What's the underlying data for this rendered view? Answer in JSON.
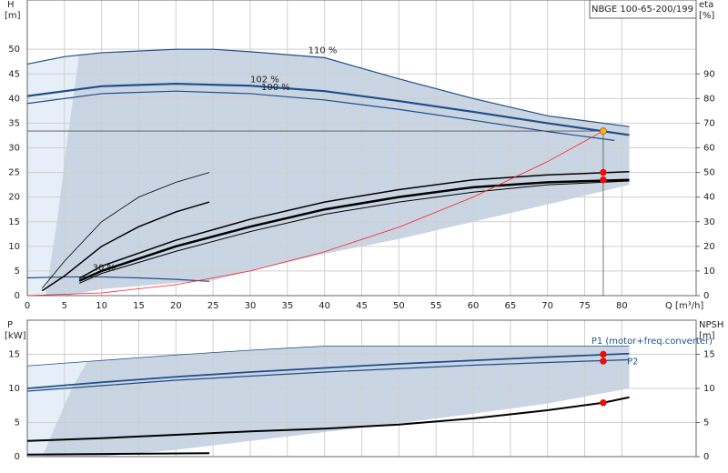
{
  "chart_data": [
    {
      "type": "line",
      "title": "NBGE 100-65-200/199",
      "ylabel": "H",
      "yunit": "[m]",
      "y2label": "eta",
      "y2unit": "[%]",
      "xlabel": "Q [m³/h]",
      "xlim": [
        0,
        90
      ],
      "ylim": [
        0,
        60
      ],
      "y2lim": [
        0,
        120
      ],
      "xticks": [
        0,
        5,
        10,
        15,
        20,
        25,
        30,
        35,
        40,
        45,
        50,
        55,
        60,
        65,
        70,
        75,
        80
      ],
      "yticks": [
        0,
        5,
        10,
        15,
        20,
        25,
        30,
        35,
        40,
        45,
        50
      ],
      "y2ticks": [
        0,
        10,
        20,
        30,
        40,
        50,
        60,
        70,
        80,
        90
      ],
      "grid": true,
      "areas": [
        {
          "color": "#e6eef7",
          "x": [
            0,
            5,
            10,
            20,
            25,
            30,
            40,
            50,
            60,
            70,
            81
          ],
          "upper": [
            47,
            48.5,
            49.3,
            50,
            50,
            49.5,
            48.3,
            44,
            40,
            36.5,
            34.3
          ],
          "lower": [
            0,
            0,
            1.3,
            2.6,
            3.1,
            5,
            8.5,
            11.5,
            15,
            18.5,
            22.5
          ]
        },
        {
          "color": "#c9d5e3",
          "x": [
            2.5,
            4,
            5.5,
            7,
            10,
            20,
            25,
            30,
            40,
            50,
            60,
            70,
            81
          ],
          "upper": [
            0.5,
            15,
            33,
            49,
            49.3,
            50,
            50,
            49.5,
            48.3,
            44,
            40,
            36.5,
            34.3
          ],
          "lower": [
            0,
            0,
            0,
            0.5,
            1.3,
            2.6,
            3.1,
            5,
            8.5,
            11.5,
            15,
            18.5,
            22.5
          ]
        }
      ],
      "series": [
        {
          "name": "110 %",
          "color": "#1f4f8a",
          "width": 1.2,
          "x": [
            0,
            5,
            10,
            20,
            25,
            30,
            40,
            50,
            60,
            70,
            81
          ],
          "values": [
            47,
            48.5,
            49.3,
            50,
            50,
            49.5,
            48.3,
            44,
            40,
            36.5,
            34.3
          ]
        },
        {
          "name": "102 %",
          "color": "#1f4f8a",
          "width": 2.2,
          "x": [
            0,
            10,
            20,
            30,
            40,
            50,
            60,
            70,
            81
          ],
          "values": [
            40.5,
            42.5,
            43,
            42.6,
            41.5,
            39.5,
            37.3,
            35,
            32.6
          ]
        },
        {
          "name": "100 %",
          "color": "#1f4f8a",
          "width": 1.2,
          "x": [
            0,
            10,
            20,
            30,
            40,
            50,
            60,
            70,
            79
          ],
          "values": [
            39,
            41,
            41.5,
            41,
            39.7,
            37.8,
            35.6,
            33.3,
            31.5
          ]
        },
        {
          "name": "30 %",
          "color": "#1f4f8a",
          "width": 1.2,
          "x": [
            0,
            5,
            10,
            15,
            20,
            24.5
          ],
          "values": [
            3.6,
            3.8,
            3.8,
            3.6,
            3.3,
            2.9
          ]
        },
        {
          "color": "#000000",
          "width": 1.5,
          "axis": "y2",
          "x": [
            7,
            10,
            20,
            30,
            40,
            50,
            60,
            70,
            81
          ],
          "values": [
            7,
            12,
            22.5,
            31,
            38,
            43,
            47,
            49,
            50.3
          ]
        },
        {
          "color": "#000000",
          "width": 2.5,
          "axis": "y2",
          "x": [
            7,
            10,
            20,
            30,
            40,
            50,
            60,
            70,
            81
          ],
          "values": [
            6,
            10,
            20,
            28,
            35,
            40,
            44,
            46,
            47
          ]
        },
        {
          "color": "#000000",
          "width": 1,
          "axis": "y2",
          "x": [
            7,
            10,
            20,
            30,
            40,
            50,
            60,
            70,
            81
          ],
          "values": [
            5,
            9,
            18,
            26,
            33,
            38,
            42,
            45,
            46.5
          ]
        },
        {
          "color": "#000000",
          "width": 0.8,
          "axis": "y2",
          "x": [
            2,
            5,
            10,
            15,
            20,
            24.5
          ],
          "values": [
            3,
            14,
            30,
            40,
            46,
            50
          ]
        },
        {
          "color": "#000000",
          "width": 1.5,
          "axis": "y2",
          "x": [
            2,
            5,
            10,
            15,
            20,
            24.5
          ],
          "values": [
            2,
            8,
            20,
            28,
            34,
            38
          ]
        },
        {
          "color": "#ff2020",
          "width": 0.8,
          "x": [
            0,
            10,
            20,
            30,
            40,
            50,
            60,
            70,
            77.5
          ],
          "values": [
            0,
            0.56,
            2.22,
            5,
            8.9,
            13.9,
            20,
            27.2,
            33.4
          ]
        }
      ],
      "points": [
        {
          "x": 77.5,
          "value": 33.4,
          "color": "#f5b800",
          "guides": true
        },
        {
          "x": 77.5,
          "value": 50,
          "axis": "y2",
          "color": "#ff0000"
        },
        {
          "x": 77.5,
          "value": 47,
          "axis": "y2",
          "color": "#ff0000"
        }
      ]
    },
    {
      "type": "line",
      "ylabel": "P",
      "yunit": "[kW]",
      "y2label": "NPSH",
      "y2unit": "[m]",
      "xlim": [
        0,
        90
      ],
      "ylim": [
        0,
        20
      ],
      "y2lim": [
        0,
        20
      ],
      "yticks": [
        0,
        5,
        10,
        15
      ],
      "y2ticks": [
        0,
        5,
        10,
        15
      ],
      "grid": true,
      "areas": [
        {
          "color": "#e6eef7",
          "x": [
            0,
            10,
            20,
            30,
            40,
            50,
            60,
            70,
            81
          ],
          "upper": [
            13.3,
            14.1,
            14.9,
            15.6,
            16.2,
            16.2,
            16.2,
            16.2,
            16.2
          ],
          "lower": [
            0,
            0,
            1,
            2.3,
            3.6,
            4.9,
            6.3,
            7.8,
            10
          ]
        },
        {
          "color": "#c9d5e3",
          "x": [
            2,
            4,
            6,
            8,
            10,
            20,
            30,
            40,
            50,
            60,
            70,
            81
          ],
          "upper": [
            0,
            5,
            10,
            13.8,
            14.1,
            14.9,
            15.6,
            16.2,
            16.2,
            16.2,
            16.2,
            16.2
          ],
          "lower": [
            0,
            0,
            0,
            0,
            0,
            1,
            2.3,
            3.6,
            4.9,
            6.3,
            7.8,
            10
          ]
        }
      ],
      "series": [
        {
          "name": "P1 (motor+freq.converter)",
          "color": "#1f4f8a",
          "width": 1.8,
          "x": [
            0,
            10,
            20,
            30,
            40,
            50,
            60,
            70,
            81
          ],
          "values": [
            10,
            10.9,
            11.7,
            12.4,
            13,
            13.6,
            14.1,
            14.6,
            15.1
          ]
        },
        {
          "name": "P2",
          "color": "#1f4f8a",
          "width": 1.2,
          "x": [
            0,
            10,
            20,
            30,
            40,
            50,
            60,
            70,
            81
          ],
          "values": [
            9.6,
            10.4,
            11.2,
            11.8,
            12.4,
            12.9,
            13.4,
            13.8,
            14.2
          ]
        },
        {
          "color": "#1f4f8a",
          "width": 0.8,
          "x": [
            0,
            10,
            20,
            30,
            40,
            50,
            60,
            70,
            81
          ],
          "values": [
            13.3,
            14.1,
            14.9,
            15.6,
            16.2,
            16.2,
            16.2,
            16.2,
            16.2
          ]
        },
        {
          "color": "#000000",
          "width": 2,
          "axis": "y2",
          "x": [
            0,
            10,
            20,
            30,
            40,
            50,
            60,
            70,
            77.5,
            81
          ],
          "values": [
            2.3,
            2.7,
            3.2,
            3.7,
            4.1,
            4.7,
            5.6,
            6.8,
            7.9,
            8.7
          ]
        },
        {
          "color": "#000000",
          "width": 2,
          "x": [
            0,
            24.5
          ],
          "values": [
            0.3,
            0.5
          ]
        }
      ],
      "points": [
        {
          "x": 77.5,
          "value": 15,
          "color": "#ff0000"
        },
        {
          "x": 77.5,
          "value": 14,
          "color": "#ff0000"
        },
        {
          "x": 77.5,
          "value": 7.9,
          "axis": "y2",
          "color": "#ff0000"
        }
      ]
    }
  ]
}
